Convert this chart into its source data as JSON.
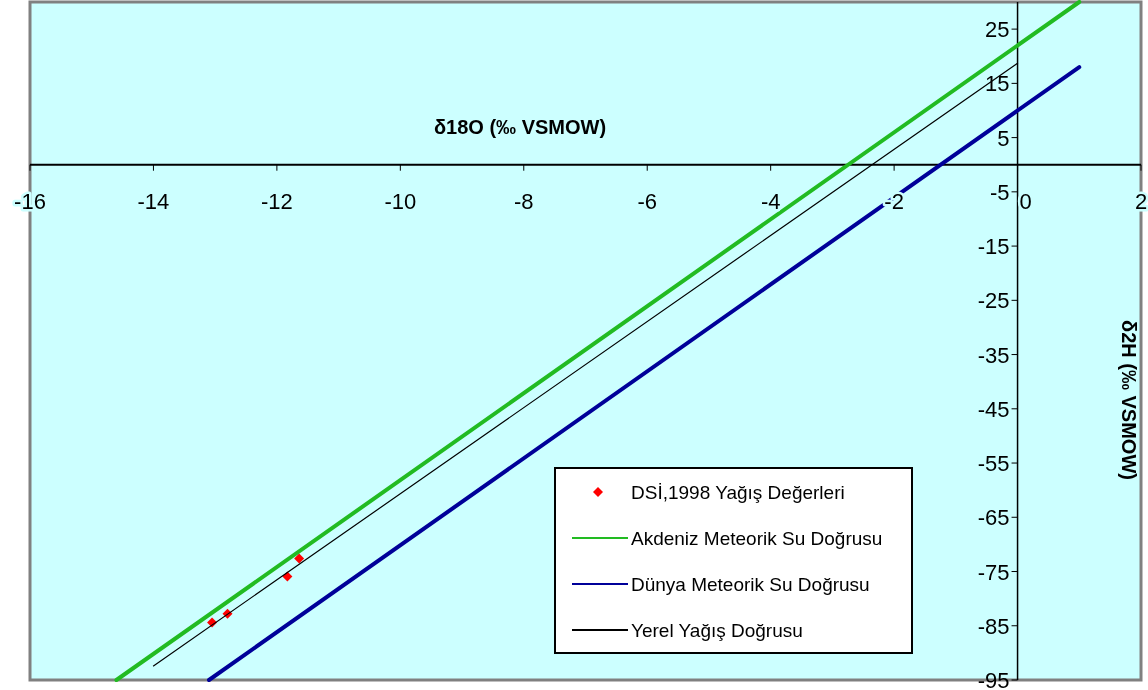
{
  "chart_data": {
    "type": "line",
    "xlabel": "δ18O (‰ VSMOW)",
    "ylabel": "δ2H (‰ VSMOW)",
    "xlim": [
      -16,
      2
    ],
    "xticks": [
      -16,
      -14,
      -12,
      -10,
      -8,
      -6,
      -4,
      -2,
      0,
      2
    ],
    "ylim": [
      -95,
      30
    ],
    "yticks": [
      -95,
      -85,
      -75,
      -65,
      -55,
      -45,
      -35,
      -25,
      -15,
      -5,
      5,
      15,
      25
    ],
    "grid": false,
    "legend": "bottom right",
    "series": [
      {
        "name": "DSİ,1998 Yağış Değerleri",
        "type": "scatter",
        "marker": "diamond",
        "color": "#ff0000",
        "x": [
          -13.05,
          -12.8,
          -11.83,
          -11.64
        ],
        "values": [
          -84.4,
          -82.8,
          -75.9,
          -72.6
        ]
      },
      {
        "name": "Akdeniz Meteorik Su Doğrusu",
        "color": "#22bb22",
        "x": [
          -14.6,
          1
        ],
        "values": [
          -95,
          30
        ]
      },
      {
        "name": "Dünya Meteorik Su Doğrusu",
        "color": "#000099",
        "x": [
          -13.1,
          1
        ],
        "values": [
          -95,
          18
        ]
      },
      {
        "name": "Yerel Yağış Doğrusu",
        "color": "#000000",
        "x": [
          -14,
          0
        ],
        "values": [
          -92.4,
          18.7
        ]
      }
    ]
  }
}
